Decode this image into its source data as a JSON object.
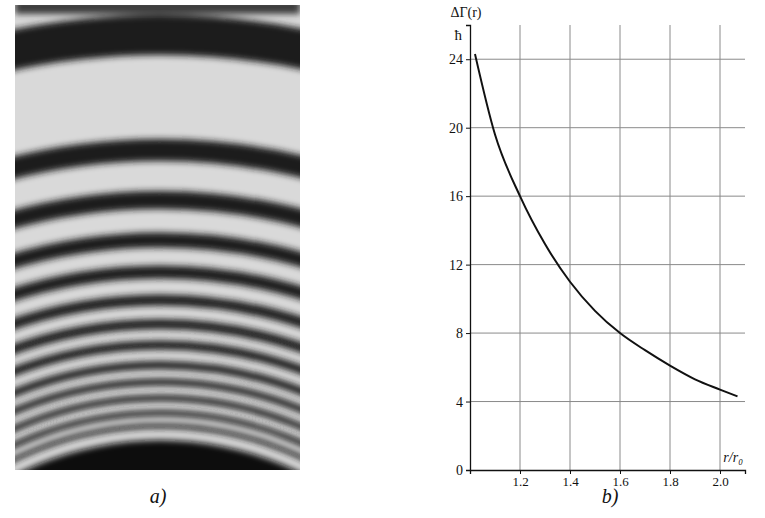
{
  "photo": {
    "panel_label": "a)"
  },
  "chart_data": {
    "type": "line",
    "panel_label": "b)",
    "y_label": "ΔΓ(r)",
    "y_unit": "ħ",
    "x_label": "r/r₀",
    "x": [
      1.02,
      1.1,
      1.2,
      1.3,
      1.4,
      1.5,
      1.6,
      1.7,
      1.8,
      1.9,
      2.0,
      2.07
    ],
    "values": [
      24.3,
      19.6,
      16,
      13.2,
      11,
      9.3,
      8,
      7,
      6.1,
      5.3,
      4.7,
      4.3
    ],
    "color": "#111111",
    "xlim": [
      1.0,
      2.1
    ],
    "xticks": [
      1.2,
      1.4,
      1.6,
      1.8,
      {
        "value": 2.0,
        "label": "2.0"
      }
    ],
    "ylim": [
      0,
      26
    ],
    "yticks": [
      0,
      4,
      8,
      12,
      16,
      20,
      24
    ],
    "grid": true
  }
}
